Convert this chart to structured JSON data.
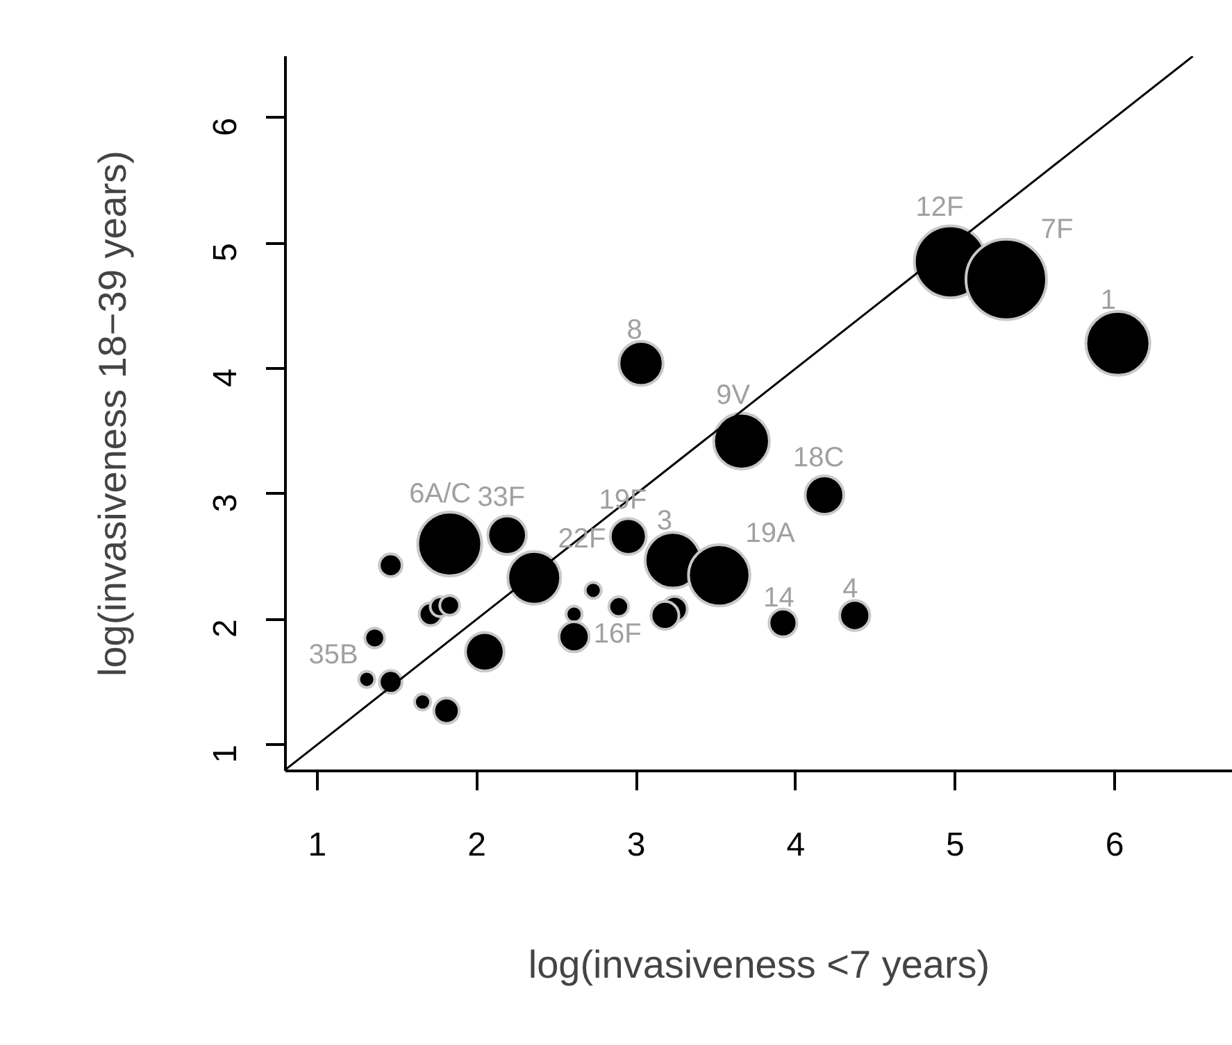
{
  "chart_data": {
    "type": "bubble",
    "xlabel": "log(invasiveness <7 years)",
    "ylabel": "log(invasiveness 18−39 years)",
    "xlim": [
      0.8,
      6.74
    ],
    "ylim": [
      0.79,
      6.49
    ],
    "xticks": [
      1,
      2,
      3,
      4,
      5,
      6
    ],
    "yticks": [
      1,
      2,
      3,
      4,
      5,
      6
    ],
    "grid": false,
    "series": [
      {
        "color": "#000000",
        "marker": "circle",
        "x": [
          1.83,
          2.19,
          2.36,
          2.95,
          3.23,
          3.52,
          3.03,
          3.66,
          4.18,
          3.92,
          4.37,
          4.97,
          5.32,
          6.02,
          1.46,
          1.71,
          1.77,
          1.83,
          1.36,
          1.31,
          1.46,
          1.66,
          1.81,
          2.05,
          2.61,
          2.61,
          2.73,
          2.89,
          3.24,
          3.18
        ],
        "values": [
          2.6,
          2.67,
          2.33,
          2.66,
          2.47,
          2.35,
          4.04,
          3.42,
          2.99,
          1.97,
          2.03,
          4.85,
          4.71,
          4.2,
          2.43,
          2.04,
          2.1,
          2.11,
          1.85,
          1.52,
          1.5,
          1.34,
          1.27,
          1.74,
          2.04,
          1.86,
          2.23,
          2.1,
          2.08,
          2.03
        ],
        "sizes": [
          0.63,
          0.23,
          0.43,
          0.2,
          0.48,
          0.58,
          0.3,
          0.48,
          0.23,
          0.12,
          0.14,
          0.8,
          1,
          0.63,
          0.08,
          0.08,
          0.06,
          0.06,
          0.06,
          0.04,
          0.08,
          0.04,
          0.1,
          0.23,
          0.04,
          0.14,
          0.04,
          0.06,
          0.1,
          0.12
        ]
      },
      {
        "type": "line",
        "color": "#000000",
        "x": [
          0.8,
          6.49
        ],
        "values": [
          0.8,
          6.49
        ]
      }
    ],
    "annotations": [
      {
        "text": "6A/C",
        "x": 1.83,
        "y": 2.6
      },
      {
        "text": "33F",
        "x": 2.19,
        "y": 2.67
      },
      {
        "text": "19F",
        "x": 2.95,
        "y": 2.66
      },
      {
        "text": "3",
        "x": 3.23,
        "y": 2.47
      },
      {
        "text": "22F",
        "x": 2.36,
        "y": 2.33
      },
      {
        "text": "16F",
        "x": 2.61,
        "y": 1.86
      },
      {
        "text": "19A",
        "x": 3.52,
        "y": 2.35
      },
      {
        "text": "8",
        "x": 3.03,
        "y": 4.04
      },
      {
        "text": "9V",
        "x": 3.66,
        "y": 3.42
      },
      {
        "text": "18C",
        "x": 4.18,
        "y": 2.99
      },
      {
        "text": "14",
        "x": 3.92,
        "y": 1.97
      },
      {
        "text": "4",
        "x": 4.37,
        "y": 2.03
      },
      {
        "text": "12F",
        "x": 4.97,
        "y": 4.85
      },
      {
        "text": "7F",
        "x": 5.32,
        "y": 4.71
      },
      {
        "text": "1",
        "x": 6.02,
        "y": 4.2
      },
      {
        "text": "35B",
        "x": 1.31,
        "y": 1.52
      }
    ]
  }
}
